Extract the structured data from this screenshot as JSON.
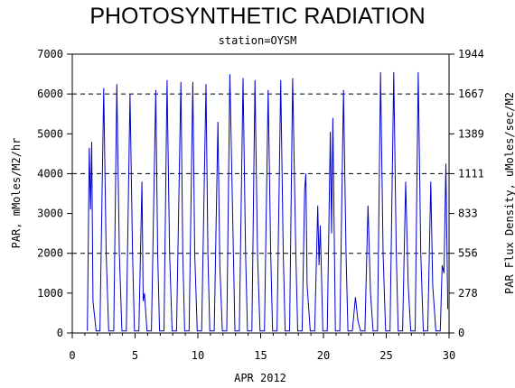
{
  "title": "PHOTOSYNTHETIC RADIATION",
  "subtitle": "station=OYSM",
  "chart_data": {
    "type": "line",
    "xlabel": "APR 2012",
    "ylabel_left": "PAR, mMoles/M2/hr",
    "ylabel_right": "PAR Flux Density, uMoles/sec/M2",
    "xlim": [
      0,
      30
    ],
    "ylim": [
      0,
      7000
    ],
    "xticks": [
      0,
      5,
      10,
      15,
      20,
      25,
      30
    ],
    "yticks_left": [
      0,
      1000,
      2000,
      3000,
      4000,
      5000,
      6000,
      7000
    ],
    "yticks_right": [
      "0",
      "278",
      "556",
      "833",
      "1111",
      "1389",
      "1667",
      "1944"
    ],
    "grid_y": [
      2000,
      4000,
      6000
    ],
    "grid_style": "dashed",
    "line_color": "#0000cc",
    "series": [
      {
        "name": "",
        "x": [
          1.2,
          1.35,
          1.45,
          1.55,
          1.65,
          1.9,
          2.2,
          2.5,
          2.7,
          2.9,
          3.3,
          3.55,
          3.75,
          3.95,
          4.3,
          4.6,
          4.8,
          4.95,
          5.3,
          5.55,
          5.65,
          5.75,
          5.95,
          6.3,
          6.65,
          6.8,
          6.95,
          7.3,
          7.55,
          7.75,
          7.95,
          8.3,
          8.65,
          8.8,
          8.95,
          9.3,
          9.6,
          9.75,
          9.95,
          10.3,
          10.65,
          10.8,
          10.95,
          11.3,
          11.6,
          11.75,
          11.95,
          12.3,
          12.55,
          12.8,
          12.95,
          13.3,
          13.6,
          13.8,
          13.95,
          14.3,
          14.55,
          14.75,
          14.95,
          15.3,
          15.6,
          15.8,
          15.95,
          16.3,
          16.6,
          16.8,
          16.95,
          17.3,
          17.55,
          17.8,
          17.95,
          18.3,
          18.5,
          18.6,
          18.7,
          18.95,
          19.3,
          19.55,
          19.65,
          19.75,
          19.95,
          20.3,
          20.55,
          20.65,
          20.75,
          20.95,
          21.3,
          21.6,
          21.8,
          21.95,
          22.3,
          22.55,
          22.75,
          22.95,
          23.3,
          23.55,
          23.75,
          23.95,
          24.3,
          24.55,
          24.75,
          24.95,
          25.3,
          25.6,
          25.8,
          25.95,
          26.3,
          26.55,
          26.75,
          26.95,
          27.3,
          27.55,
          27.75,
          27.95,
          28.3,
          28.55,
          28.7,
          28.95,
          29.3,
          29.45,
          29.6,
          29.75,
          29.9
        ],
        "y": [
          50,
          4650,
          3100,
          4800,
          800,
          50,
          50,
          6150,
          2000,
          50,
          50,
          6250,
          2000,
          50,
          50,
          6000,
          2000,
          50,
          50,
          3800,
          800,
          1000,
          50,
          50,
          6100,
          2000,
          50,
          50,
          6350,
          2000,
          50,
          50,
          6300,
          2000,
          50,
          50,
          6300,
          2000,
          50,
          50,
          6250,
          2000,
          50,
          50,
          5300,
          1700,
          50,
          50,
          6500,
          2500,
          50,
          50,
          6400,
          2000,
          50,
          50,
          6350,
          2000,
          50,
          50,
          6100,
          2000,
          50,
          50,
          6350,
          2000,
          50,
          50,
          6400,
          2000,
          50,
          50,
          3600,
          4000,
          1200,
          50,
          50,
          3200,
          1700,
          2700,
          50,
          50,
          5050,
          2500,
          5400,
          50,
          50,
          6100,
          2000,
          50,
          50,
          900,
          300,
          50,
          50,
          3200,
          1000,
          50,
          50,
          6550,
          2000,
          50,
          50,
          6550,
          2000,
          50,
          50,
          3800,
          1200,
          50,
          50,
          6550,
          2000,
          50,
          50,
          3800,
          1200,
          50,
          50,
          1700,
          1500,
          4250,
          600
        ]
      }
    ]
  }
}
